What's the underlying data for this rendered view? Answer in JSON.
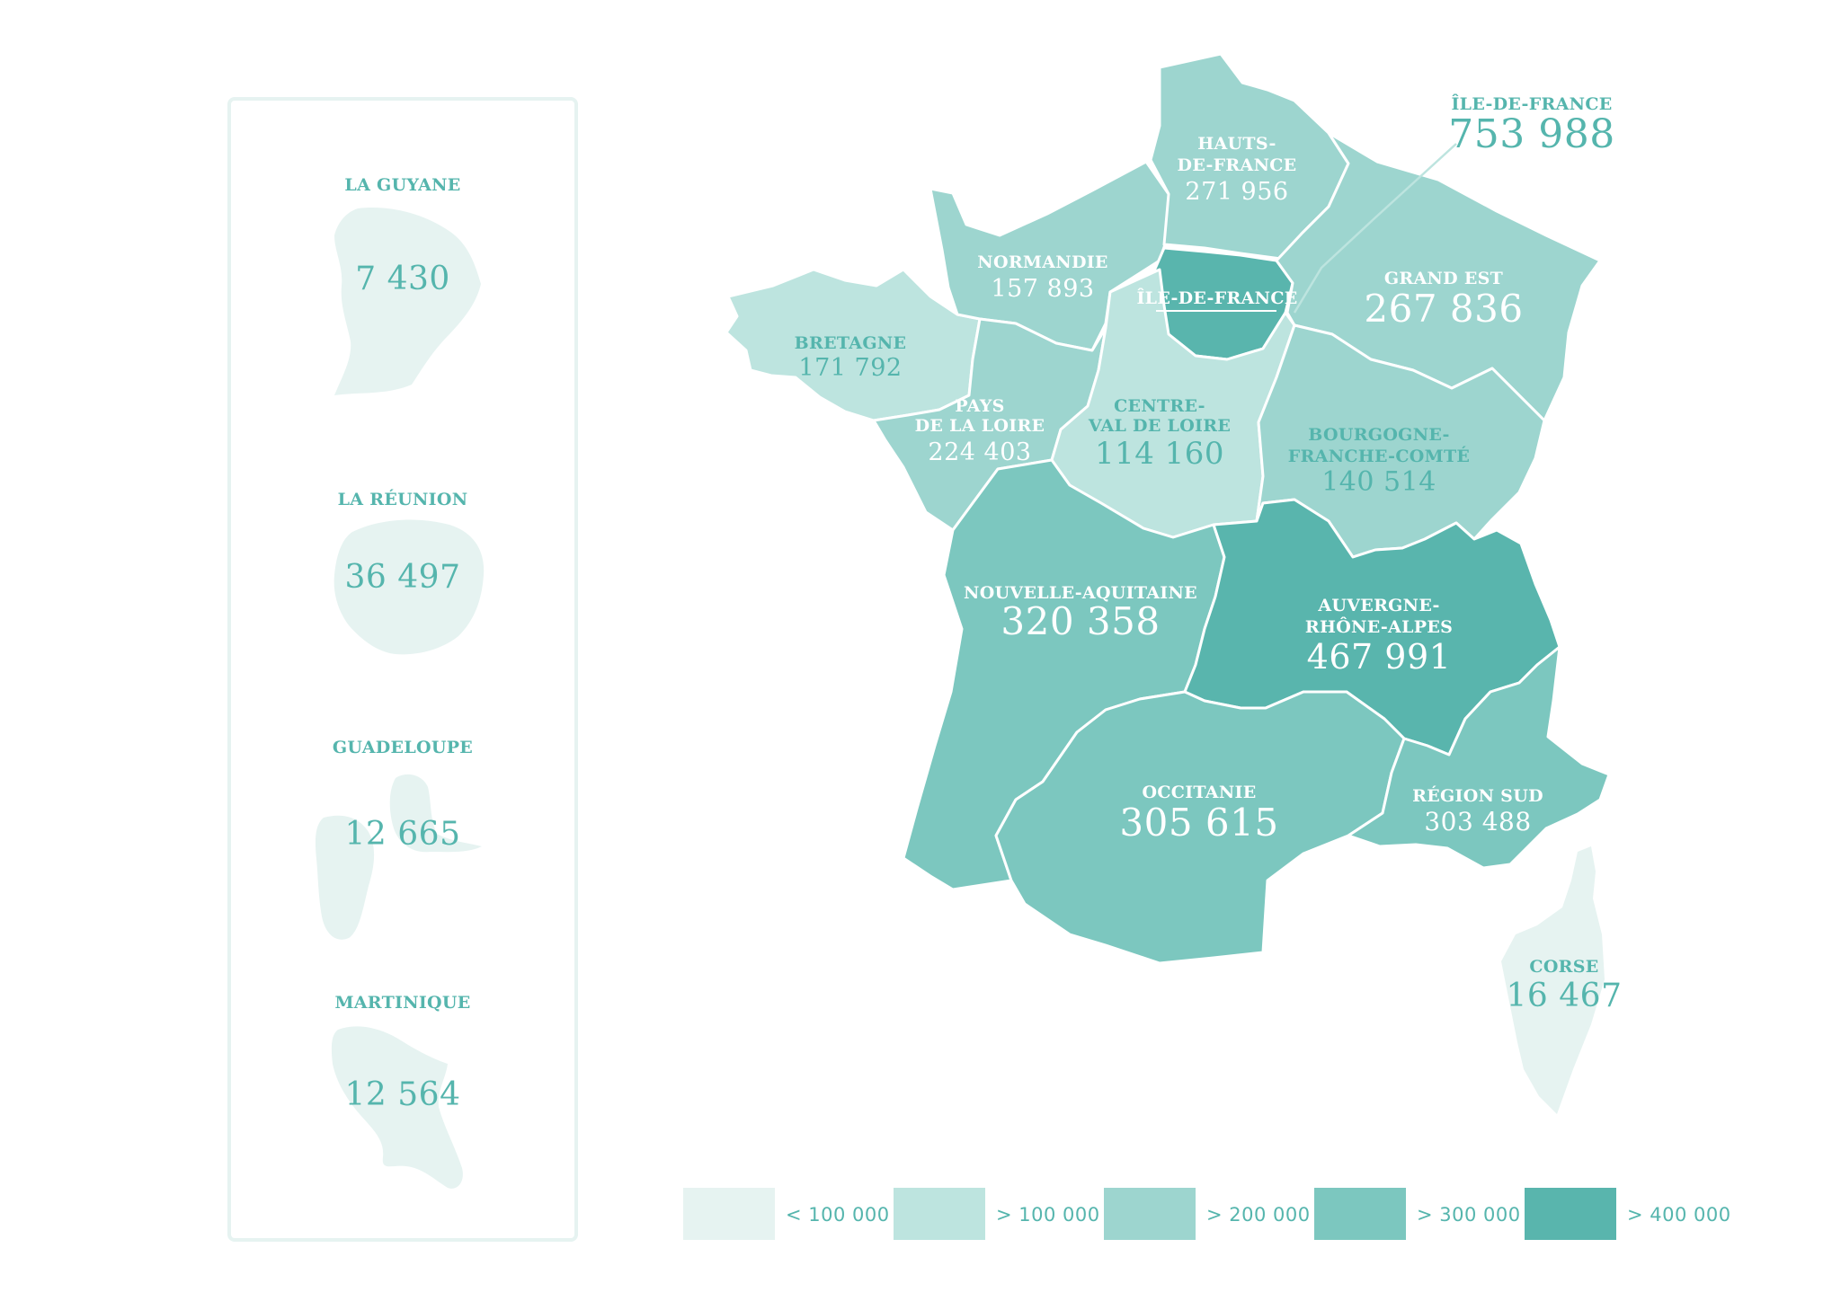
{
  "colors": {
    "lt100k": "#e6f3f1",
    "gt100k": "#bde4df",
    "gt200k": "#9dd5cf",
    "gt300k": "#7cc7bf",
    "gt400k": "#59b5ad",
    "text_teal": "#55b5ad"
  },
  "overseas": {
    "guyane": {
      "name": "LA GUYANE",
      "value": "7 430"
    },
    "reunion": {
      "name": "LA RÉUNION",
      "value": "36 497"
    },
    "guadeloupe": {
      "name": "GUADELOUPE",
      "value": "12 665"
    },
    "martinique": {
      "name": "MARTINIQUE",
      "value": "12 564"
    }
  },
  "regions": {
    "hauts_de_france": {
      "name1": "HAUTS-",
      "name2": "DE-FRANCE",
      "value": "271 956"
    },
    "normandie": {
      "name": "NORMANDIE",
      "value": "157 893"
    },
    "bretagne": {
      "name": "BRETAGNE",
      "value": "171 792"
    },
    "pays_de_la_loire": {
      "name1": "PAYS",
      "name2": "DE LA LOIRE",
      "value": "224 403"
    },
    "centre_val_de_loire": {
      "name1": "CENTRE-",
      "name2": "VAL DE LOIRE",
      "value": "114 160"
    },
    "ile_de_france": {
      "name": "ÎLE-DE-FRANCE",
      "callout_name": "ÎLE-DE-FRANCE",
      "value": "753 988"
    },
    "grand_est": {
      "name": "GRAND EST",
      "value": "267 836"
    },
    "bourgogne_franche_comte": {
      "name1": "BOURGOGNE-",
      "name2": "FRANCHE-COMTÉ",
      "value": "140 514"
    },
    "nouvelle_aquitaine": {
      "name": "NOUVELLE-AQUITAINE",
      "value": "320 358"
    },
    "auvergne_rhone_alpes": {
      "name1": "AUVERGNE-",
      "name2": "RHÔNE-ALPES",
      "value": "467 991"
    },
    "occitanie": {
      "name": "OCCITANIE",
      "value": "305 615"
    },
    "region_sud": {
      "name": "RÉGION SUD",
      "value": "303 488"
    },
    "corse": {
      "name": "CORSE",
      "value": "16 467"
    }
  },
  "legend": [
    {
      "label": "< 100 000",
      "color": "#e6f3f1"
    },
    {
      "label": "> 100 000",
      "color": "#bde4df"
    },
    {
      "label": "> 200 000",
      "color": "#9dd5cf"
    },
    {
      "label": "> 300 000",
      "color": "#7cc7bf"
    },
    {
      "label": "> 400 000",
      "color": "#59b5ad"
    }
  ]
}
